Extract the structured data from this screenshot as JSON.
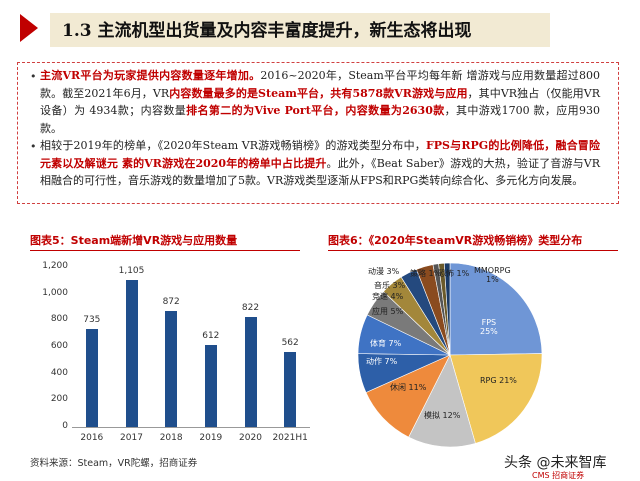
{
  "header": {
    "title": "1.3 主流机型出货量及内容丰富度提升，新生态将出现"
  },
  "bullets": [
    {
      "lead": "主流VR平台为玩家提供内容数量逐年增加。",
      "text1": "2016~2020年，Steam平台平均每年新 增游戏与应用数量超过800款。截至2021年6月，VR",
      "hl1": "内容数量最多的是Steam平台，共有5878款VR游戏与应用",
      "text2": "，其中VR独占（仅能用VR设备）为 4934款；内容数量",
      "hl2": "排名第二的为Vive Port平台，内容数量为2630款",
      "text3": "，其中游戏1700 款，应用930款。"
    },
    {
      "text1": "相较于2019年的榜单，《2020年Steam VR游戏畅销榜》的游戏类型分布中，",
      "hl1": "FPS与RPG的比例降低，融合冒险元素以及解谜元 素的VR游戏在2020年的榜单中占比提升",
      "text2": "。此外，《Beat Saber》游戏的大热，验证了音游与VR相融合的可行性，音乐游戏的数量增加了5款。VR游戏类型逐渐从FPS和RPG类转向综合化、多元化方向发展。"
    }
  ],
  "chart_data": [
    {
      "type": "bar",
      "title": "图表5：Steam端新增VR游戏与应用数量",
      "categories": [
        "2016",
        "2017",
        "2018",
        "2019",
        "2020",
        "2021H1"
      ],
      "values": [
        735,
        1105,
        872,
        612,
        822,
        562
      ],
      "ylim": [
        0,
        1200
      ],
      "yticks": [
        "0",
        "200",
        "400",
        "600",
        "800",
        "1,000",
        "1,200"
      ],
      "colors": {
        "bar": "#1f4e8c"
      }
    },
    {
      "type": "pie",
      "title": "图表6：《2020年SteamVR游戏畅销榜》类型分布",
      "slices": [
        {
          "name": "FPS",
          "value": 25,
          "label": "FPS\n25%",
          "color": "#6f96d6"
        },
        {
          "name": "RPG",
          "value": 21,
          "label": "RPG 21%",
          "color": "#f0c75a"
        },
        {
          "name": "模拟",
          "value": 12,
          "label": "模拟 12%",
          "color": "#c4c4c4"
        },
        {
          "name": "休闲",
          "value": 11,
          "label": "休闲 11%",
          "color": "#ee8a3c"
        },
        {
          "name": "动作",
          "value": 7,
          "label": "动作 7%",
          "color": "#2d5fa8"
        },
        {
          "name": "体育",
          "value": 7,
          "label": "体育 7%",
          "color": "#3f73c4"
        },
        {
          "name": "应用",
          "value": 5,
          "label": "应用 5%",
          "color": "#7a7a7a"
        },
        {
          "name": "竞速",
          "value": 4,
          "label": "竞速 4%",
          "color": "#a3873a"
        },
        {
          "name": "音乐",
          "value": 3,
          "label": "音乐 3%",
          "color": "#24497e"
        },
        {
          "name": "动漫",
          "value": 3,
          "label": "动漫 3%",
          "color": "#8a4b1f"
        },
        {
          "name": "策略",
          "value": 1,
          "label": "策略 1%",
          "color": "#555555"
        },
        {
          "name": "恐怖",
          "value": 1,
          "label": "恐怖 1%",
          "color": "#6b5a2a"
        },
        {
          "name": "MMORPG",
          "value": 1,
          "label": "MMORPG\n1%",
          "color": "#1a3a66"
        }
      ]
    }
  ],
  "source": "资料来源：Steam，VR陀螺，招商证券",
  "watermark": {
    "line1": "头条 @未来智库",
    "line2": "CMS 招商证券"
  }
}
